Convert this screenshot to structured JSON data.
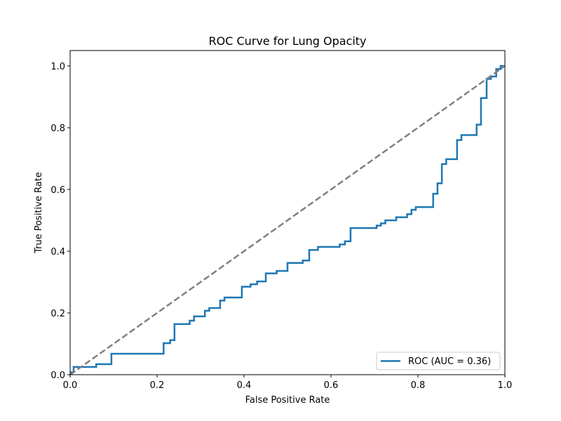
{
  "chart_data": {
    "type": "line",
    "title": "ROC Curve for Lung Opacity",
    "xlabel": "False Positive Rate",
    "ylabel": "True Positive Rate",
    "xlim": [
      0.0,
      1.0
    ],
    "ylim": [
      0.0,
      1.05
    ],
    "xticks": [
      "0.0",
      "0.2",
      "0.4",
      "0.6",
      "0.8",
      "1.0"
    ],
    "yticks": [
      "0.0",
      "0.2",
      "0.4",
      "0.6",
      "0.8",
      "1.0"
    ],
    "grid": false,
    "legend_position": "lower-right",
    "series": [
      {
        "name": "ROC (AUC = 0.36)",
        "color": "#1f77b4",
        "style": "solid",
        "points": [
          [
            0.0,
            0.0
          ],
          [
            0.0,
            0.008
          ],
          [
            0.008,
            0.008
          ],
          [
            0.008,
            0.025
          ],
          [
            0.06,
            0.025
          ],
          [
            0.06,
            0.034
          ],
          [
            0.095,
            0.034
          ],
          [
            0.095,
            0.068
          ],
          [
            0.215,
            0.068
          ],
          [
            0.215,
            0.102
          ],
          [
            0.23,
            0.102
          ],
          [
            0.23,
            0.112
          ],
          [
            0.24,
            0.112
          ],
          [
            0.24,
            0.164
          ],
          [
            0.275,
            0.164
          ],
          [
            0.275,
            0.175
          ],
          [
            0.285,
            0.175
          ],
          [
            0.285,
            0.189
          ],
          [
            0.31,
            0.189
          ],
          [
            0.31,
            0.207
          ],
          [
            0.32,
            0.207
          ],
          [
            0.32,
            0.216
          ],
          [
            0.345,
            0.216
          ],
          [
            0.345,
            0.24
          ],
          [
            0.355,
            0.24
          ],
          [
            0.355,
            0.25
          ],
          [
            0.395,
            0.25
          ],
          [
            0.395,
            0.285
          ],
          [
            0.415,
            0.285
          ],
          [
            0.415,
            0.293
          ],
          [
            0.43,
            0.293
          ],
          [
            0.43,
            0.302
          ],
          [
            0.45,
            0.302
          ],
          [
            0.45,
            0.328
          ],
          [
            0.475,
            0.328
          ],
          [
            0.475,
            0.336
          ],
          [
            0.5,
            0.336
          ],
          [
            0.5,
            0.362
          ],
          [
            0.535,
            0.362
          ],
          [
            0.535,
            0.37
          ],
          [
            0.55,
            0.37
          ],
          [
            0.55,
            0.404
          ],
          [
            0.57,
            0.404
          ],
          [
            0.57,
            0.414
          ],
          [
            0.62,
            0.414
          ],
          [
            0.62,
            0.422
          ],
          [
            0.632,
            0.422
          ],
          [
            0.632,
            0.432
          ],
          [
            0.645,
            0.432
          ],
          [
            0.645,
            0.475
          ],
          [
            0.705,
            0.475
          ],
          [
            0.705,
            0.483
          ],
          [
            0.715,
            0.483
          ],
          [
            0.715,
            0.49
          ],
          [
            0.725,
            0.49
          ],
          [
            0.725,
            0.5
          ],
          [
            0.75,
            0.5
          ],
          [
            0.75,
            0.51
          ],
          [
            0.775,
            0.51
          ],
          [
            0.775,
            0.52
          ],
          [
            0.785,
            0.52
          ],
          [
            0.785,
            0.534
          ],
          [
            0.795,
            0.534
          ],
          [
            0.795,
            0.543
          ],
          [
            0.835,
            0.543
          ],
          [
            0.835,
            0.586
          ],
          [
            0.845,
            0.586
          ],
          [
            0.845,
            0.62
          ],
          [
            0.855,
            0.62
          ],
          [
            0.855,
            0.682
          ],
          [
            0.865,
            0.682
          ],
          [
            0.865,
            0.698
          ],
          [
            0.89,
            0.698
          ],
          [
            0.89,
            0.76
          ],
          [
            0.9,
            0.76
          ],
          [
            0.9,
            0.776
          ],
          [
            0.935,
            0.776
          ],
          [
            0.935,
            0.81
          ],
          [
            0.945,
            0.81
          ],
          [
            0.945,
            0.896
          ],
          [
            0.958,
            0.896
          ],
          [
            0.958,
            0.958
          ],
          [
            0.968,
            0.958
          ],
          [
            0.968,
            0.966
          ],
          [
            0.98,
            0.966
          ],
          [
            0.98,
            0.99
          ],
          [
            0.99,
            0.99
          ],
          [
            0.99,
            1.0
          ],
          [
            1.0,
            1.0
          ]
        ]
      },
      {
        "color": "#808080",
        "style": "dashed",
        "points": [
          [
            0.0,
            0.0
          ],
          [
            1.0,
            1.0
          ]
        ]
      }
    ]
  }
}
